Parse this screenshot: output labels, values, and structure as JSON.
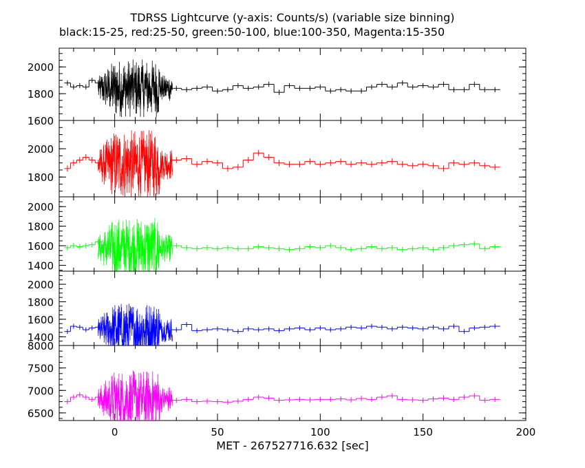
{
  "chart_data": {
    "type": "line",
    "title": "TDRSS Lightcurve (y-axis: Counts/s) (variable size binning)",
    "subtitle": "black:15-25, red:25-50, green:50-100, blue:100-350, Magenta:15-350",
    "xlabel": "MET - 267527716.632 [sec]",
    "xlim": [
      -27,
      200
    ],
    "xticks": [
      0,
      50,
      100,
      150,
      200
    ],
    "panels": [
      {
        "name": "black",
        "color": "#000000",
        "ylim": [
          1600,
          2140
        ],
        "yticks": [
          1600,
          1800,
          2000
        ],
        "quiet_level": 1840,
        "burst_amplitude": 160,
        "x": [
          -23,
          -20,
          -17,
          -14,
          -11,
          -8,
          30,
          35,
          40,
          45,
          50,
          55,
          60,
          65,
          70,
          75,
          80,
          85,
          90,
          95,
          100,
          105,
          110,
          115,
          120,
          125,
          130,
          135,
          140,
          145,
          150,
          155,
          160,
          165,
          170,
          175,
          180,
          185
        ],
        "y": [
          1880,
          1850,
          1860,
          1850,
          1900,
          1880,
          1840,
          1830,
          1840,
          1850,
          1820,
          1830,
          1860,
          1840,
          1850,
          1870,
          1810,
          1860,
          1840,
          1840,
          1850,
          1820,
          1830,
          1820,
          1820,
          1850,
          1870,
          1850,
          1880,
          1850,
          1860,
          1850,
          1870,
          1830,
          1830,
          1870,
          1830,
          1830
        ]
      },
      {
        "name": "red",
        "color": "#ff0000",
        "ylim": [
          1660,
          2200
        ],
        "yticks": [
          1800,
          2000
        ],
        "quiet_level": 1890,
        "burst_amplitude": 180,
        "x": [
          -23,
          -20,
          -17,
          -14,
          -11,
          -8,
          30,
          35,
          40,
          45,
          50,
          55,
          60,
          65,
          70,
          75,
          80,
          85,
          90,
          95,
          100,
          105,
          110,
          115,
          120,
          125,
          130,
          135,
          140,
          145,
          150,
          155,
          160,
          165,
          170,
          175,
          180,
          185
        ],
        "y": [
          1860,
          1900,
          1920,
          1940,
          1920,
          1900,
          1920,
          1930,
          1890,
          1910,
          1900,
          1860,
          1870,
          1920,
          1970,
          1940,
          1900,
          1890,
          1890,
          1910,
          1890,
          1900,
          1910,
          1890,
          1900,
          1890,
          1900,
          1910,
          1890,
          1880,
          1890,
          1880,
          1860,
          1900,
          1890,
          1900,
          1880,
          1870
        ]
      },
      {
        "name": "green",
        "color": "#00ff00",
        "ylim": [
          1340,
          2100
        ],
        "yticks": [
          1400,
          1600,
          1800,
          2000
        ],
        "quiet_level": 1575,
        "burst_amplitude": 230,
        "x": [
          -23,
          -20,
          -17,
          -14,
          -11,
          -8,
          30,
          35,
          40,
          45,
          50,
          55,
          60,
          65,
          70,
          75,
          80,
          85,
          90,
          95,
          100,
          105,
          110,
          115,
          120,
          125,
          130,
          135,
          140,
          145,
          150,
          155,
          160,
          165,
          170,
          175,
          180,
          185
        ],
        "y": [
          1580,
          1600,
          1590,
          1600,
          1610,
          1640,
          1600,
          1580,
          1570,
          1580,
          1570,
          1580,
          1570,
          1570,
          1590,
          1580,
          1570,
          1560,
          1570,
          1590,
          1580,
          1600,
          1580,
          1560,
          1570,
          1590,
          1570,
          1580,
          1560,
          1570,
          1580,
          1560,
          1580,
          1600,
          1610,
          1620,
          1570,
          1590
        ]
      },
      {
        "name": "blue",
        "color": "#0000ff",
        "ylim": [
          1300,
          2150
        ],
        "yticks": [
          1400,
          1600,
          1800,
          2000
        ],
        "quiet_level": 1480,
        "burst_amplitude": 230,
        "x": [
          -23,
          -20,
          -17,
          -14,
          -11,
          -8,
          30,
          35,
          40,
          45,
          50,
          55,
          60,
          65,
          70,
          75,
          80,
          85,
          90,
          95,
          100,
          105,
          110,
          115,
          120,
          125,
          130,
          135,
          140,
          145,
          150,
          155,
          160,
          165,
          170,
          175,
          180,
          185
        ],
        "y": [
          1460,
          1520,
          1510,
          1480,
          1500,
          1510,
          1480,
          1540,
          1470,
          1480,
          1490,
          1480,
          1460,
          1490,
          1480,
          1490,
          1470,
          1490,
          1500,
          1480,
          1500,
          1480,
          1490,
          1510,
          1500,
          1520,
          1510,
          1490,
          1510,
          1500,
          1490,
          1510,
          1490,
          1520,
          1460,
          1500,
          1510,
          1520
        ]
      },
      {
        "name": "magenta",
        "color": "#ff00ff",
        "ylim": [
          6330,
          8000
        ],
        "yticks": [
          6500,
          7000,
          7500,
          8000
        ],
        "quiet_level": 6800,
        "burst_amplitude": 480,
        "x": [
          -23,
          -20,
          -17,
          -14,
          -11,
          -8,
          30,
          35,
          40,
          45,
          50,
          55,
          60,
          65,
          70,
          75,
          80,
          85,
          90,
          95,
          100,
          105,
          110,
          115,
          120,
          125,
          130,
          135,
          140,
          145,
          150,
          155,
          160,
          165,
          170,
          175,
          180,
          185
        ],
        "y": [
          6750,
          6850,
          6900,
          6850,
          6800,
          6850,
          6780,
          6800,
          6750,
          6760,
          6750,
          6740,
          6760,
          6800,
          6850,
          6830,
          6780,
          6790,
          6800,
          6790,
          6800,
          6800,
          6810,
          6790,
          6820,
          6800,
          6850,
          6880,
          6800,
          6790,
          6780,
          6810,
          6830,
          6800,
          6850,
          6880,
          6780,
          6800
        ]
      }
    ]
  }
}
